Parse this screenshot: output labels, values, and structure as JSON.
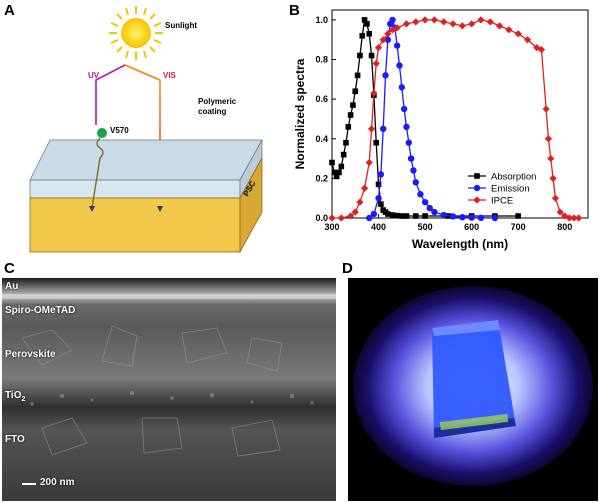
{
  "panels": {
    "a": "A",
    "b": "B",
    "c": "C",
    "d": "D"
  },
  "schematic": {
    "sunlight": "Sunlight",
    "uv": "UV",
    "vis": "VIS",
    "dye": "V570",
    "coating": "Polymeric\ncoating",
    "cell": "PSC"
  },
  "sem": {
    "layers": [
      "Au",
      "Spiro-OMeTAD",
      "Perovskite",
      "TiO",
      "FTO"
    ],
    "tio2_sub": "2",
    "scale_bar": "200 nm"
  },
  "colors": {
    "absorption": "#000000",
    "emission": "#1a1aff",
    "ipce": "#e02020",
    "psc": "#f2c84a",
    "coating": "#c9dbe6"
  },
  "chart_data": {
    "type": "line",
    "xlabel": "Wavelength (nm)",
    "ylabel": "Normalized spectra",
    "xlim": [
      300,
      850
    ],
    "ylim": [
      0,
      1.05
    ],
    "xticks": [
      300,
      400,
      500,
      600,
      700,
      800
    ],
    "yticks": [
      0.0,
      0.2,
      0.4,
      0.6,
      0.8,
      1.0
    ],
    "legend_position": "bottom-right",
    "series": [
      {
        "name": "Absorption",
        "marker": "square",
        "color": "#000000",
        "x": [
          300,
          305,
          310,
          315,
          320,
          325,
          330,
          335,
          340,
          345,
          350,
          355,
          360,
          365,
          370,
          375,
          380,
          385,
          390,
          395,
          400,
          405,
          410,
          415,
          420,
          430,
          440,
          450,
          460,
          480,
          500,
          550,
          600,
          650,
          700
        ],
        "y": [
          0.28,
          0.23,
          0.21,
          0.23,
          0.26,
          0.32,
          0.38,
          0.46,
          0.52,
          0.57,
          0.64,
          0.72,
          0.82,
          0.92,
          1.0,
          0.98,
          0.93,
          0.82,
          0.62,
          0.38,
          0.17,
          0.07,
          0.04,
          0.03,
          0.02,
          0.015,
          0.012,
          0.01,
          0.01,
          0.01,
          0.01,
          0.01,
          0.01,
          0.01,
          0.01
        ]
      },
      {
        "name": "Emission",
        "marker": "circle",
        "color": "#1a1aff",
        "x": [
          380,
          390,
          400,
          405,
          410,
          415,
          420,
          425,
          430,
          435,
          440,
          445,
          450,
          455,
          460,
          465,
          470,
          475,
          480,
          490,
          500,
          510,
          520,
          540,
          560,
          580,
          600,
          620,
          650
        ],
        "y": [
          0.0,
          0.02,
          0.1,
          0.22,
          0.45,
          0.72,
          0.9,
          0.98,
          1.0,
          0.96,
          0.87,
          0.77,
          0.66,
          0.55,
          0.46,
          0.38,
          0.3,
          0.24,
          0.18,
          0.12,
          0.08,
          0.05,
          0.03,
          0.015,
          0.008,
          0.004,
          0.002,
          0.001,
          0.0
        ],
        "marker_every": 1
      },
      {
        "name": "IPCE",
        "marker": "diamond",
        "color": "#e02020",
        "x": [
          300,
          320,
          340,
          350,
          360,
          370,
          380,
          385,
          390,
          395,
          400,
          410,
          420,
          430,
          440,
          460,
          480,
          500,
          520,
          540,
          560,
          580,
          600,
          620,
          640,
          660,
          680,
          700,
          720,
          740,
          750,
          760,
          765,
          770,
          775,
          780,
          790,
          800,
          810,
          820,
          830
        ],
        "y": [
          0.0,
          0.0,
          0.01,
          0.03,
          0.08,
          0.15,
          0.28,
          0.45,
          0.63,
          0.78,
          0.86,
          0.9,
          0.93,
          0.95,
          0.96,
          0.98,
          0.99,
          1.0,
          1.0,
          0.99,
          0.98,
          0.97,
          0.98,
          1.0,
          0.99,
          0.97,
          0.95,
          0.93,
          0.9,
          0.86,
          0.85,
          0.55,
          0.4,
          0.3,
          0.2,
          0.1,
          0.03,
          0.01,
          0.0,
          0.0,
          0.0
        ]
      }
    ]
  }
}
